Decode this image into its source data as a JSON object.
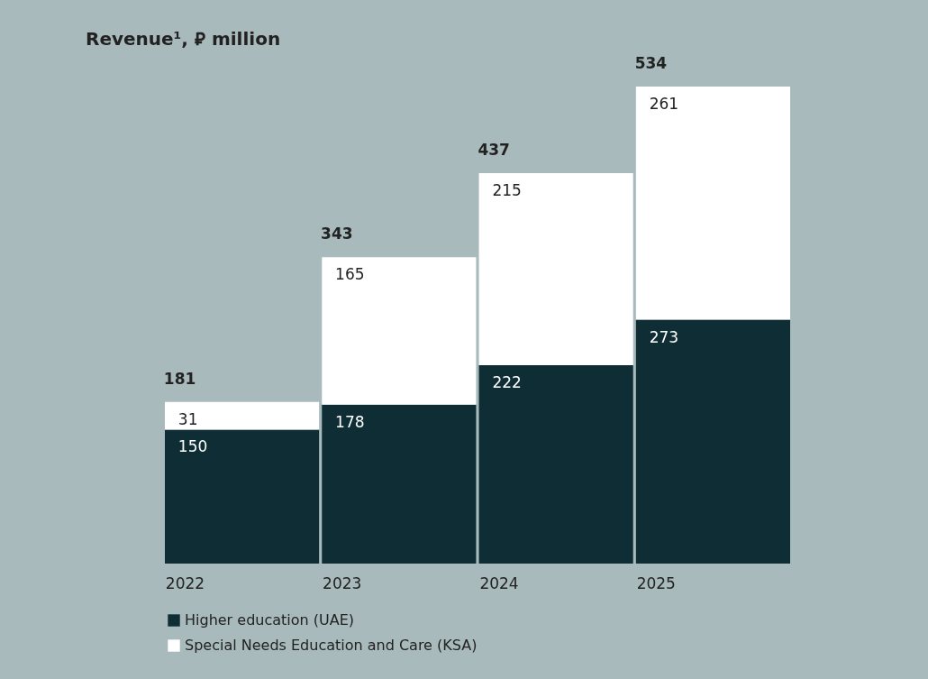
{
  "chart_data": {
    "type": "bar",
    "title": "Revenue¹, ⃁ million",
    "categories": [
      "2022",
      "2023",
      "2024",
      "2025"
    ],
    "stacked": true,
    "data_labels": true,
    "legend": "bottom",
    "series": [
      {
        "name": "Higher education (UAE)",
        "color": "#0f2d35",
        "values": [
          150,
          178,
          222,
          273
        ]
      },
      {
        "name": "Special Needs Education and Care (KSA)",
        "color": "#ffffff",
        "values": [
          31,
          165,
          215,
          261
        ]
      }
    ],
    "totals": [
      "181",
      "343",
      "437",
      "534"
    ]
  }
}
